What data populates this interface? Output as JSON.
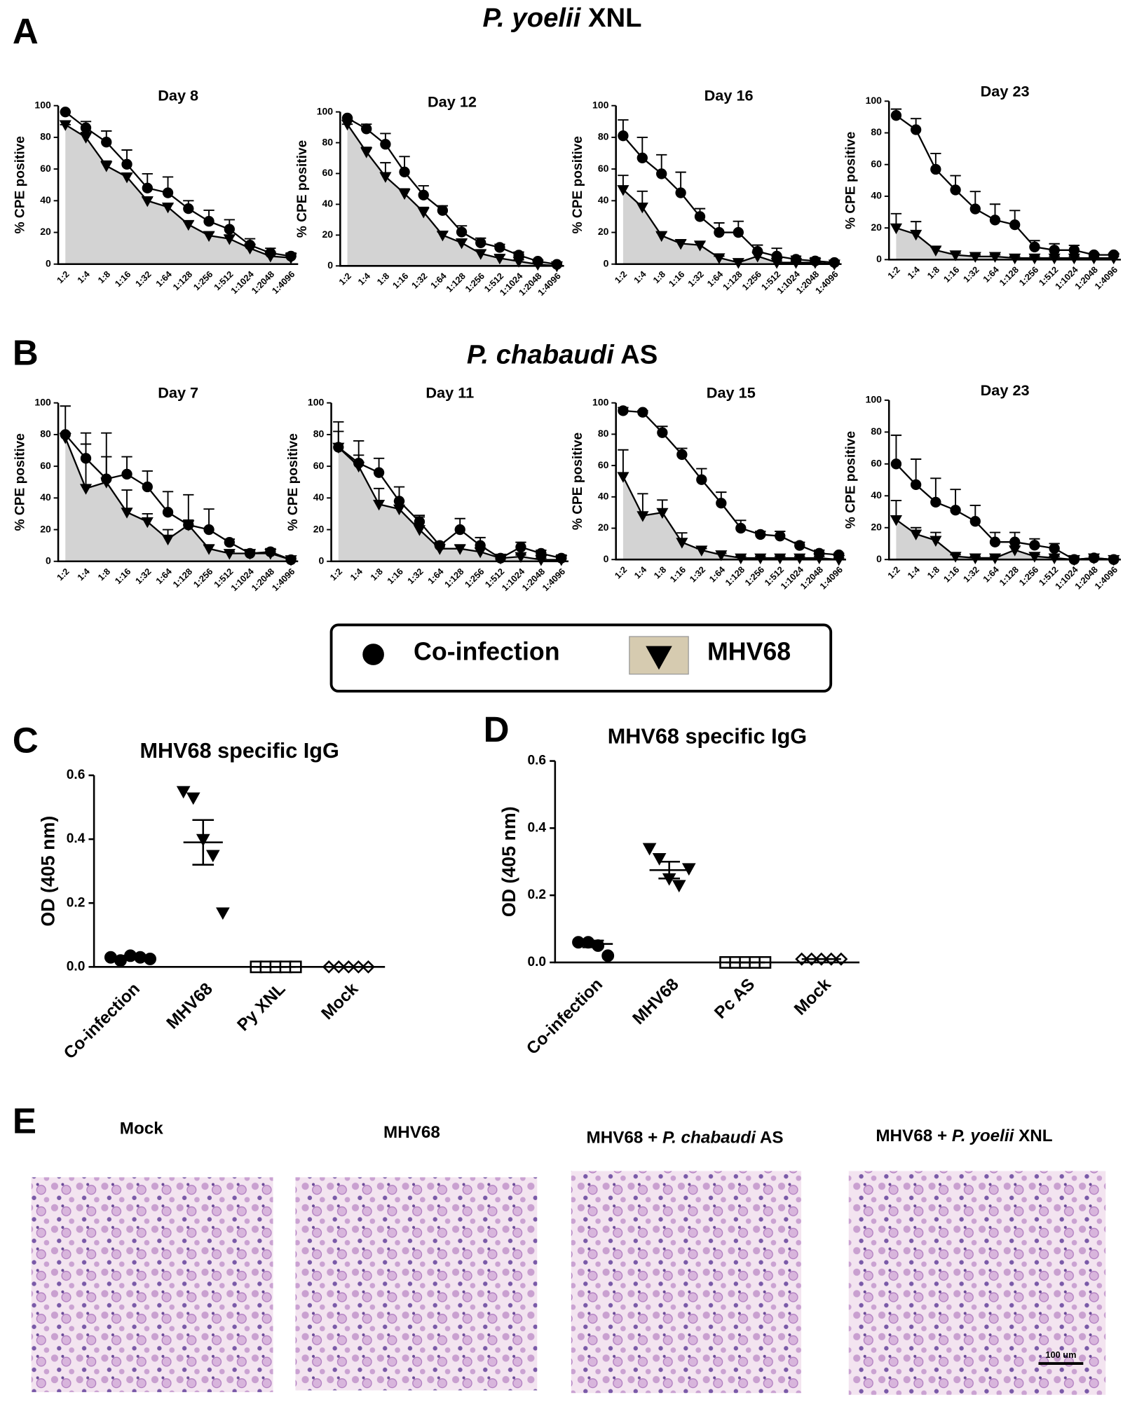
{
  "panel_labels": [
    "A",
    "B",
    "C",
    "D",
    "E"
  ],
  "section_titles": [
    [
      {
        "text": "P. yoelii",
        "italic": true
      },
      {
        "text": " XNL",
        "italic": false
      }
    ],
    [
      {
        "text": "P. chabaudi",
        "italic": true
      },
      {
        "text": " AS",
        "italic": false
      }
    ]
  ],
  "legend": [
    {
      "name": "Co-infection",
      "marker": "circle"
    },
    {
      "name": "MHV68",
      "marker": "triangle",
      "fill": "#d6cbb0"
    }
  ],
  "chart_data": [
    {
      "type": "line",
      "title": "Day 8",
      "ylabel": "% CPE positive",
      "categories": [
        "1:2",
        "1:4",
        "1:8",
        "1:16",
        "1:32",
        "1:64",
        "1:128",
        "1:256",
        "1:512",
        "1:1024",
        "1:2048",
        "1:4096"
      ],
      "ylim": [
        0,
        100
      ],
      "yticks": [
        0,
        20,
        40,
        60,
        80,
        100
      ],
      "series": [
        {
          "color": "#000000",
          "marker": "circle",
          "values": [
            96,
            86,
            77,
            63,
            48,
            45,
            35,
            27,
            22,
            12,
            7,
            5
          ],
          "errors": [
            0,
            4,
            7,
            9,
            9,
            10,
            5,
            7,
            6,
            4,
            3,
            2
          ]
        },
        {
          "color": "#000000",
          "marker": "triangle",
          "fill": "#d3d3d3",
          "values": [
            88,
            80,
            62,
            55,
            40,
            36,
            25,
            18,
            16,
            10,
            5,
            4
          ],
          "errors": [
            0,
            3,
            3,
            2,
            2,
            2,
            2,
            2,
            2,
            2,
            1,
            1
          ]
        }
      ]
    },
    {
      "type": "line",
      "title": "Day 12",
      "ylabel": "% CPE positive",
      "categories": [
        "1:2",
        "1:4",
        "1:8",
        "1:16",
        "1:32",
        "1:64",
        "1:128",
        "1:256",
        "1:512",
        "1:1024",
        "1:2048",
        "1:4096"
      ],
      "ylim": [
        0,
        100
      ],
      "yticks": [
        0,
        20,
        40,
        60,
        80,
        100
      ],
      "series": [
        {
          "color": "#000000",
          "marker": "circle",
          "values": [
            96,
            89,
            79,
            61,
            46,
            36,
            22,
            15,
            12,
            7,
            3,
            1
          ],
          "errors": [
            0,
            3,
            7,
            10,
            6,
            3,
            4,
            3,
            2,
            2,
            1,
            1
          ]
        },
        {
          "color": "#000000",
          "marker": "triangle",
          "fill": "#d3d3d3",
          "values": [
            92,
            74,
            58,
            47,
            35,
            20,
            15,
            8,
            5,
            3,
            1,
            0
          ],
          "errors": [
            0,
            3,
            9,
            3,
            3,
            2,
            2,
            2,
            2,
            1,
            1,
            1
          ]
        }
      ]
    },
    {
      "type": "line",
      "title": "Day 16",
      "ylabel": "% CPE positive",
      "categories": [
        "1:2",
        "1:4",
        "1:8",
        "1:16",
        "1:32",
        "1:64",
        "1:128",
        "1:256",
        "1:512",
        "1:1024",
        "1:2048",
        "1:4096"
      ],
      "ylim": [
        0,
        100
      ],
      "yticks": [
        0,
        20,
        40,
        60,
        80,
        100
      ],
      "series": [
        {
          "color": "#000000",
          "marker": "circle",
          "values": [
            81,
            67,
            57,
            45,
            30,
            20,
            20,
            8,
            5,
            3,
            2,
            1
          ],
          "errors": [
            10,
            13,
            12,
            13,
            5,
            6,
            7,
            4,
            5,
            2,
            2,
            1
          ]
        },
        {
          "color": "#000000",
          "marker": "triangle",
          "fill": "#d3d3d3",
          "values": [
            47,
            36,
            18,
            13,
            12,
            4,
            1,
            5,
            1,
            1,
            1,
            0
          ],
          "errors": [
            9,
            10,
            2,
            2,
            2,
            1,
            1,
            2,
            1,
            1,
            1,
            1
          ]
        }
      ]
    },
    {
      "type": "line",
      "title": "Day 23",
      "ylabel": "% CPE positive",
      "categories": [
        "1:2",
        "1:4",
        "1:8",
        "1:16",
        "1:32",
        "1:64",
        "1:128",
        "1:256",
        "1:512",
        "1:1024",
        "1:2048",
        "1:4096"
      ],
      "ylim": [
        0,
        100
      ],
      "yticks": [
        0,
        20,
        40,
        60,
        80,
        100
      ],
      "series": [
        {
          "color": "#000000",
          "marker": "circle",
          "values": [
            91,
            82,
            57,
            44,
            32,
            25,
            22,
            8,
            6,
            6,
            3,
            3
          ],
          "errors": [
            4,
            7,
            10,
            9,
            11,
            10,
            9,
            4,
            4,
            3,
            1,
            1
          ]
        },
        {
          "color": "#000000",
          "marker": "triangle",
          "fill": "#d3d3d3",
          "values": [
            20,
            16,
            6,
            3,
            2,
            2,
            1,
            1,
            1,
            1,
            1,
            1
          ],
          "errors": [
            9,
            8,
            2,
            1,
            1,
            1,
            1,
            1,
            1,
            1,
            1,
            1
          ]
        }
      ]
    },
    {
      "type": "line",
      "title": "Day 7",
      "ylabel": "% CPE positive",
      "categories": [
        "1:2",
        "1:4",
        "1:8",
        "1:16",
        "1:32",
        "1:64",
        "1:128",
        "1:256",
        "1:512",
        "1:1024",
        "1:2048",
        "1:4096"
      ],
      "ylim": [
        0,
        100
      ],
      "yticks": [
        0,
        20,
        40,
        60,
        80,
        100
      ],
      "series": [
        {
          "color": "#000000",
          "marker": "circle",
          "values": [
            80,
            65,
            52,
            55,
            47,
            31,
            23,
            20,
            12,
            5,
            6,
            1
          ],
          "errors": [
            18,
            16,
            29,
            11,
            10,
            13,
            19,
            13,
            2,
            2,
            2,
            1
          ]
        },
        {
          "color": "#000000",
          "marker": "triangle",
          "fill": "#d3d3d3",
          "values": [
            78,
            46,
            50,
            31,
            25,
            14,
            23,
            8,
            5,
            5,
            5,
            1
          ],
          "errors": [
            3,
            28,
            16,
            14,
            5,
            6,
            3,
            2,
            1,
            1,
            1,
            1
          ]
        }
      ]
    },
    {
      "type": "line",
      "title": "Day 11",
      "ylabel": "% CPE positive",
      "categories": [
        "1:2",
        "1:4",
        "1:8",
        "1:16",
        "1:32",
        "1:64",
        "1:128",
        "1:256",
        "1:512",
        "1:1024",
        "1:2048",
        "1:4096"
      ],
      "ylim": [
        0,
        100
      ],
      "yticks": [
        0,
        20,
        40,
        60,
        80,
        100
      ],
      "series": [
        {
          "color": "#000000",
          "marker": "circle",
          "values": [
            72,
            62,
            56,
            38,
            25,
            10,
            20,
            10,
            2,
            9,
            5,
            2
          ],
          "errors": [
            16,
            14,
            9,
            9,
            4,
            2,
            7,
            5,
            1,
            3,
            2,
            2
          ]
        },
        {
          "color": "#000000",
          "marker": "triangle",
          "fill": "#d3d3d3",
          "values": [
            72,
            60,
            36,
            33,
            20,
            8,
            8,
            6,
            2,
            3,
            1,
            1
          ],
          "errors": [
            10,
            7,
            10,
            5,
            8,
            2,
            2,
            2,
            1,
            1,
            1,
            1
          ]
        }
      ]
    },
    {
      "type": "line",
      "title": "Day 15",
      "ylabel": "% CPE positive",
      "categories": [
        "1:2",
        "1:4",
        "1:8",
        "1:16",
        "1:32",
        "1:64",
        "1:128",
        "1:256",
        "1:512",
        "1:1024",
        "1:2048",
        "1:4096"
      ],
      "ylim": [
        0,
        100
      ],
      "yticks": [
        0,
        20,
        40,
        60,
        80,
        100
      ],
      "series": [
        {
          "color": "#000000",
          "marker": "circle",
          "values": [
            95,
            94,
            81,
            67,
            51,
            36,
            20,
            16,
            15,
            9,
            4,
            3
          ],
          "errors": [
            2,
            1,
            4,
            4,
            7,
            7,
            5,
            2,
            3,
            2,
            2,
            1
          ]
        },
        {
          "color": "#000000",
          "marker": "triangle",
          "fill": "#d3d3d3",
          "values": [
            53,
            28,
            30,
            11,
            6,
            3,
            1,
            1,
            1,
            1,
            1,
            0
          ],
          "errors": [
            17,
            14,
            8,
            6,
            1,
            1,
            1,
            1,
            1,
            1,
            1,
            1
          ]
        }
      ]
    },
    {
      "type": "line",
      "title": "Day 23",
      "ylabel": "% CPE positive",
      "categories": [
        "1:2",
        "1:4",
        "1:8",
        "1:16",
        "1:32",
        "1:64",
        "1:128",
        "1:256",
        "1:512",
        "1:1024",
        "1:2048",
        "1:4096"
      ],
      "ylim": [
        0,
        100
      ],
      "yticks": [
        0,
        20,
        40,
        60,
        80,
        100
      ],
      "series": [
        {
          "color": "#000000",
          "marker": "circle",
          "values": [
            60,
            47,
            36,
            31,
            24,
            11,
            11,
            9,
            7,
            0,
            1,
            0
          ],
          "errors": [
            18,
            16,
            15,
            13,
            10,
            6,
            6,
            4,
            3,
            1,
            1,
            1
          ]
        },
        {
          "color": "#000000",
          "marker": "triangle",
          "fill": "#d3d3d3",
          "values": [
            25,
            16,
            12,
            2,
            1,
            1,
            6,
            2,
            1,
            0,
            1,
            0
          ],
          "errors": [
            12,
            4,
            5,
            1,
            1,
            1,
            2,
            1,
            1,
            1,
            1,
            1
          ]
        }
      ]
    },
    {
      "type": "scatter",
      "title": "MHV68 specific IgG",
      "ylabel": "OD (405 nm)",
      "categories": [
        "Co-infection",
        "MHV68",
        "Py XNL",
        "Mock"
      ],
      "markers": [
        "circle",
        "triangle",
        "square",
        "diamond"
      ],
      "ylim": [
        0,
        0.6
      ],
      "yticks": [
        {
          "value": 0,
          "label": "0.0"
        },
        0.2,
        0.4,
        0.6
      ],
      "points": [
        [
          0.03,
          0.02,
          0.035,
          0.03,
          0.025
        ],
        [
          0.55,
          0.53,
          0.4,
          0.35,
          0.17
        ],
        [
          0,
          0,
          0,
          0,
          0
        ],
        [
          0,
          0,
          0,
          0,
          0
        ]
      ],
      "mean": [
        0.03,
        0.39,
        0,
        0
      ],
      "sem": [
        0.005,
        0.07,
        0,
        0
      ]
    },
    {
      "type": "scatter",
      "title": "MHV68 specific IgG",
      "ylabel": "OD (405 nm)",
      "categories": [
        "Co-infection",
        "MHV68",
        "Pc AS",
        "Mock"
      ],
      "markers": [
        "circle",
        "triangle",
        "square",
        "diamond"
      ],
      "ylim": [
        0,
        0.6
      ],
      "yticks": [
        {
          "value": 0,
          "label": "0.0"
        },
        0.2,
        0.4,
        0.6
      ],
      "points": [
        [
          0.06,
          0.06,
          0.05,
          0.02
        ],
        [
          0.34,
          0.31,
          0.25,
          0.23,
          0.28
        ],
        [
          0,
          0,
          0,
          0,
          0
        ],
        [
          0.01,
          0.01,
          0.01,
          0.01,
          0.01
        ]
      ],
      "mean": [
        0.055,
        0.275,
        0,
        0.01
      ],
      "sem": [
        0.01,
        0.025,
        0,
        0
      ]
    }
  ],
  "histology": [
    {
      "title": [
        {
          "text": "Mock",
          "italic": false
        }
      ]
    },
    {
      "title": [
        {
          "text": "MHV68",
          "italic": false
        }
      ]
    },
    {
      "title": [
        {
          "text": "MHV68 + ",
          "italic": false
        },
        {
          "text": "P. chabaudi",
          "italic": true
        },
        {
          "text": " AS",
          "italic": false
        }
      ]
    },
    {
      "title": [
        {
          "text": "MHV68 + ",
          "italic": false
        },
        {
          "text": "P. yoelii",
          "italic": true
        },
        {
          "text": " XNL",
          "italic": false
        }
      ],
      "scale_label": "100 um"
    }
  ]
}
